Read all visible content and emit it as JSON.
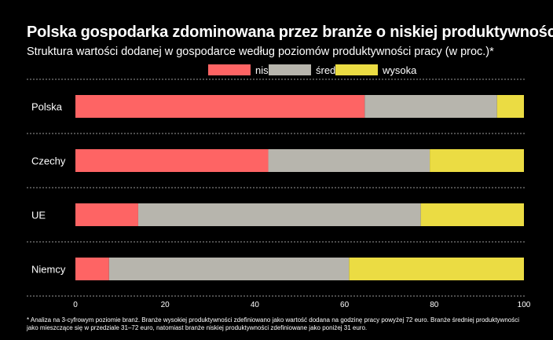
{
  "header": {
    "title": "Polska gospodarka zdominowana przez branże o niskiej produktywności",
    "subtitle": "Struktura wartości dodanej w gospodarce według poziomów produktywności pracy (w proc.)*"
  },
  "footnote": "* Analiza na 3-cyfrowym poziomie branż. Branże wysokiej produktywności zdefiniowano jako wartość dodana na godzinę pracy powyżej 72 euro. Branże średniej produktywności jako mieszczące się w przedziale 31–72 euro, natomiast branże niskiej produktywności zdefiniowane jako poniżej 31 euro.",
  "colors": {
    "niska": "#fe6464",
    "srednia": "#b7b5ad",
    "wysoka": "#ebdc43",
    "grid": "#9a9a9a",
    "background": "#000000"
  },
  "chart_data": {
    "type": "bar",
    "orientation": "horizontal",
    "stacked": true,
    "categories": [
      "Polska",
      "Czechy",
      "UE",
      "Niemcy"
    ],
    "series": [
      {
        "name": "niska",
        "values": [
          64.5,
          43.0,
          14.0,
          7.5
        ]
      },
      {
        "name": "średnia",
        "values": [
          29.5,
          36.0,
          63.0,
          53.5
        ]
      },
      {
        "name": "wysoka",
        "values": [
          6.0,
          21.0,
          23.0,
          39.0
        ]
      }
    ],
    "xlim": [
      0,
      100
    ],
    "xticks": [
      0,
      20,
      40,
      60,
      80,
      100
    ],
    "legend": "top-center",
    "grid": "horizontal dashed separators"
  }
}
